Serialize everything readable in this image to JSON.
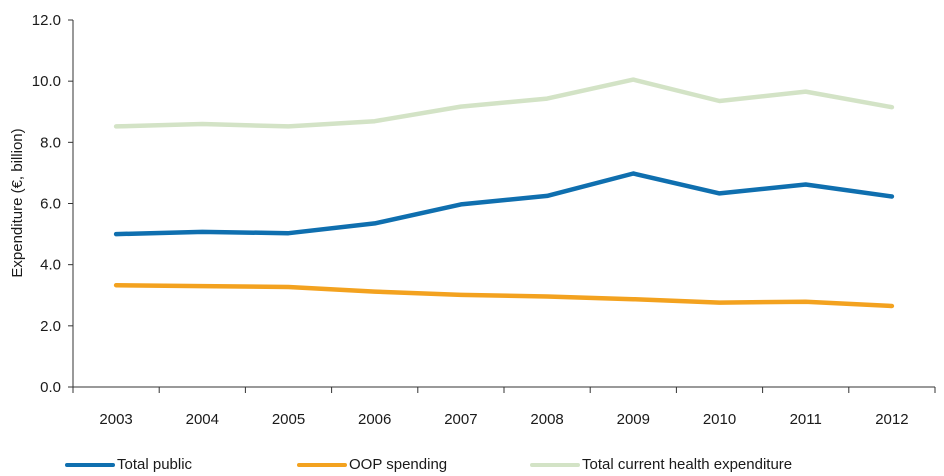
{
  "chart_data": {
    "type": "line",
    "title": "",
    "xlabel": "",
    "ylabel": "Expenditure (€, billion)",
    "ylim": [
      0,
      12
    ],
    "yticks": [
      "0.0",
      "2.0",
      "4.0",
      "6.0",
      "8.0",
      "10.0",
      "12.0"
    ],
    "categories": [
      "2003",
      "2004",
      "2005",
      "2006",
      "2007",
      "2008",
      "2009",
      "2010",
      "2011",
      "2012"
    ],
    "grid": false,
    "legend_position": "bottom",
    "series": [
      {
        "name": "Total public",
        "color": "#0f6faf",
        "values": [
          5.0,
          5.07,
          5.03,
          5.35,
          5.97,
          6.25,
          6.98,
          6.33,
          6.62,
          6.23
        ]
      },
      {
        "name": "OOP spending",
        "color": "#f3a21f",
        "values": [
          3.33,
          3.3,
          3.27,
          3.12,
          3.01,
          2.96,
          2.87,
          2.76,
          2.79,
          2.65
        ]
      },
      {
        "name": "Total current health expenditure",
        "color": "#d3e3c6",
        "values": [
          8.52,
          8.6,
          8.52,
          8.69,
          9.17,
          9.43,
          10.05,
          9.35,
          9.66,
          9.15
        ]
      }
    ]
  }
}
